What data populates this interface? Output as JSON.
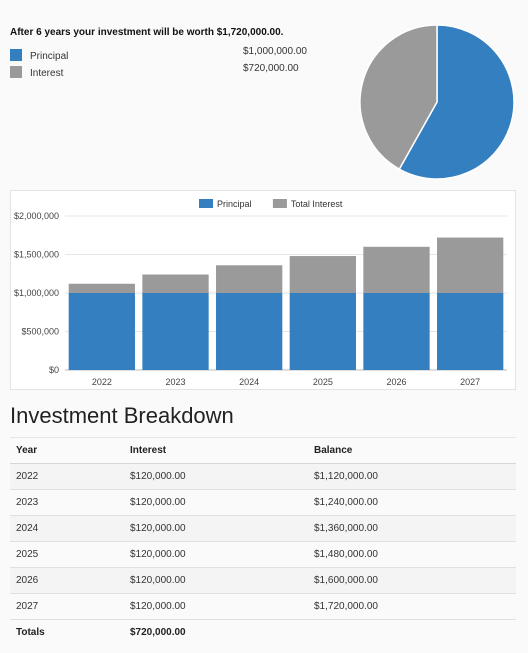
{
  "summary": {
    "title": "After 6 years your investment will be worth $1,720,000.00.",
    "legend": [
      {
        "label": "Principal",
        "amount": "$1,000,000.00",
        "color": "#337fbf"
      },
      {
        "label": "Interest",
        "amount": "$720,000.00",
        "color": "#9a9a9a"
      }
    ]
  },
  "chart_data": [
    {
      "type": "pie",
      "labels": [
        "Principal",
        "Interest"
      ],
      "values": [
        1000000,
        720000
      ],
      "colors": [
        "#337fbf",
        "#9a9a9a"
      ]
    },
    {
      "type": "bar",
      "stacked": true,
      "categories": [
        "2022",
        "2023",
        "2024",
        "2025",
        "2026",
        "2027"
      ],
      "series": [
        {
          "name": "Principal",
          "values": [
            1000000,
            1000000,
            1000000,
            1000000,
            1000000,
            1000000
          ],
          "color": "#337fbf"
        },
        {
          "name": "Total Interest",
          "values": [
            120000,
            240000,
            360000,
            480000,
            600000,
            720000
          ],
          "color": "#9a9a9a"
        }
      ],
      "ylim": [
        0,
        2000000
      ],
      "yticks": [
        0,
        500000,
        1000000,
        1500000,
        2000000
      ],
      "ytick_labels": [
        "$0",
        "$500,000",
        "$1,000,000",
        "$1,500,000",
        "$2,000,000"
      ],
      "legend_position": "top-center",
      "grid": true
    }
  ],
  "breakdown": {
    "heading": "Investment Breakdown",
    "columns": [
      "Year",
      "Interest",
      "Balance"
    ],
    "rows": [
      [
        "2022",
        "$120,000.00",
        "$1,120,000.00"
      ],
      [
        "2023",
        "$120,000.00",
        "$1,240,000.00"
      ],
      [
        "2024",
        "$120,000.00",
        "$1,360,000.00"
      ],
      [
        "2025",
        "$120,000.00",
        "$1,480,000.00"
      ],
      [
        "2026",
        "$120,000.00",
        "$1,600,000.00"
      ],
      [
        "2027",
        "$120,000.00",
        "$1,720,000.00"
      ]
    ],
    "totals_label": "Totals",
    "totals_interest": "$720,000.00"
  }
}
